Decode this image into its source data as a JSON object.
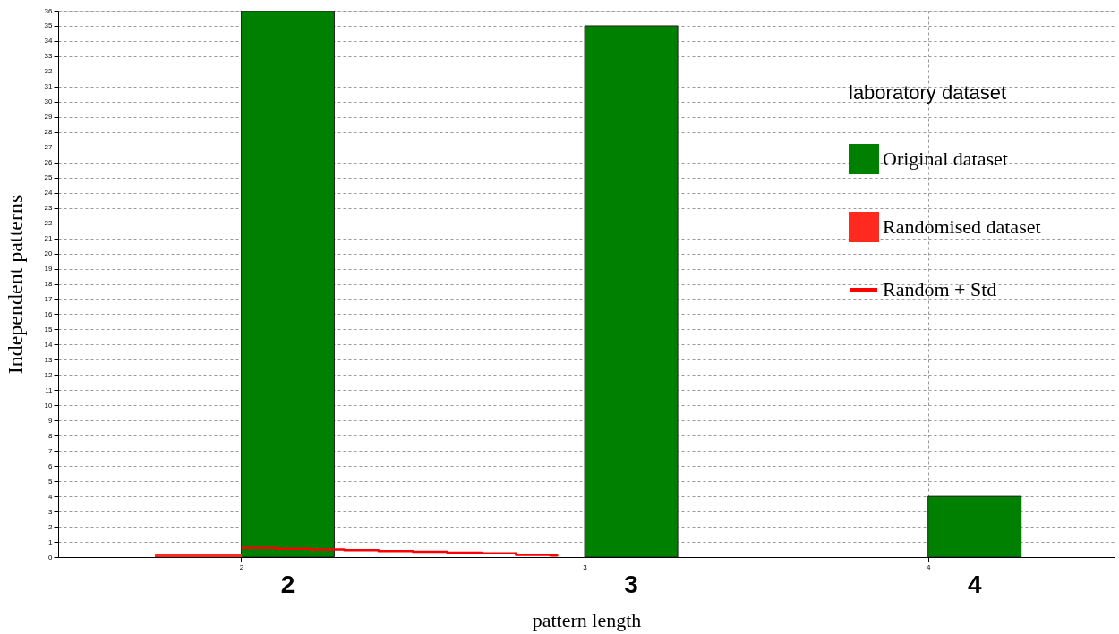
{
  "chart_data": {
    "type": "bar",
    "xlabel": "pattern length",
    "ylabel": "Independent patterns",
    "legend_title": "laboratory dataset",
    "x": [
      2,
      3,
      4
    ],
    "series": [
      {
        "name": "Original dataset",
        "color": "#008000",
        "values": [
          36,
          35,
          4
        ]
      },
      {
        "name": "Randomised dataset",
        "color": "#ff2a1f",
        "values": [
          0.2,
          null,
          null
        ]
      },
      {
        "name": "Random + Std",
        "type": "line",
        "color": "#ff0000",
        "x": [
          2.0,
          2.1,
          2.2,
          2.3,
          2.4,
          2.5,
          2.6,
          2.7,
          2.8,
          2.9,
          2.92
        ],
        "values": [
          0.6,
          0.55,
          0.5,
          0.45,
          0.4,
          0.35,
          0.3,
          0.25,
          0.15,
          0.1,
          0.05
        ]
      }
    ],
    "xlim": [
      1.48,
      4.53
    ],
    "xticks": [
      2,
      3,
      4
    ],
    "ylim": [
      0,
      36
    ],
    "yticks": [
      0,
      1,
      2,
      3,
      4,
      5,
      6,
      7,
      8,
      9,
      10,
      11,
      12,
      13,
      14,
      15,
      16,
      17,
      18,
      19,
      20,
      21,
      22,
      23,
      24,
      25,
      26,
      27,
      28,
      29,
      30,
      31,
      32,
      33,
      34,
      35,
      36
    ],
    "annotations": [
      "2",
      "3",
      "4"
    ],
    "grid": true,
    "legend": "top right"
  }
}
